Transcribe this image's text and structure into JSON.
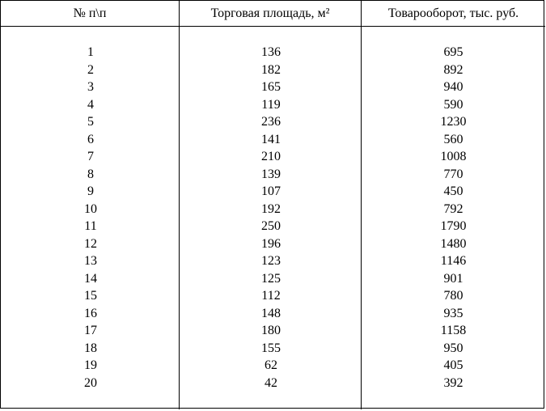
{
  "table": {
    "headers": {
      "number": "№ п\\п",
      "area": "Торговая площадь, м²",
      "turnover": "Товарооборот, тыс. руб."
    },
    "rows": [
      {
        "number": "1",
        "area": "136",
        "turnover": "695"
      },
      {
        "number": "2",
        "area": "182",
        "turnover": "892"
      },
      {
        "number": "3",
        "area": "165",
        "turnover": "940"
      },
      {
        "number": "4",
        "area": "119",
        "turnover": "590"
      },
      {
        "number": "5",
        "area": "236",
        "turnover": "1230"
      },
      {
        "number": "6",
        "area": "141",
        "turnover": "560"
      },
      {
        "number": "7",
        "area": "210",
        "turnover": "1008"
      },
      {
        "number": "8",
        "area": "139",
        "turnover": "770"
      },
      {
        "number": "9",
        "area": "107",
        "turnover": "450"
      },
      {
        "number": "10",
        "area": "192",
        "turnover": "792"
      },
      {
        "number": "11",
        "area": "250",
        "turnover": "1790"
      },
      {
        "number": "12",
        "area": "196",
        "turnover": "1480"
      },
      {
        "number": "13",
        "area": "123",
        "turnover": "1146"
      },
      {
        "number": "14",
        "area": "125",
        "turnover": "901"
      },
      {
        "number": "15",
        "area": "112",
        "turnover": "780"
      },
      {
        "number": "16",
        "area": "148",
        "turnover": "935"
      },
      {
        "number": "17",
        "area": "180",
        "turnover": "1158"
      },
      {
        "number": "18",
        "area": "155",
        "turnover": "950"
      },
      {
        "number": "19",
        "area": "62",
        "turnover": "405"
      },
      {
        "number": "20",
        "area": "42",
        "turnover": "392"
      }
    ]
  }
}
